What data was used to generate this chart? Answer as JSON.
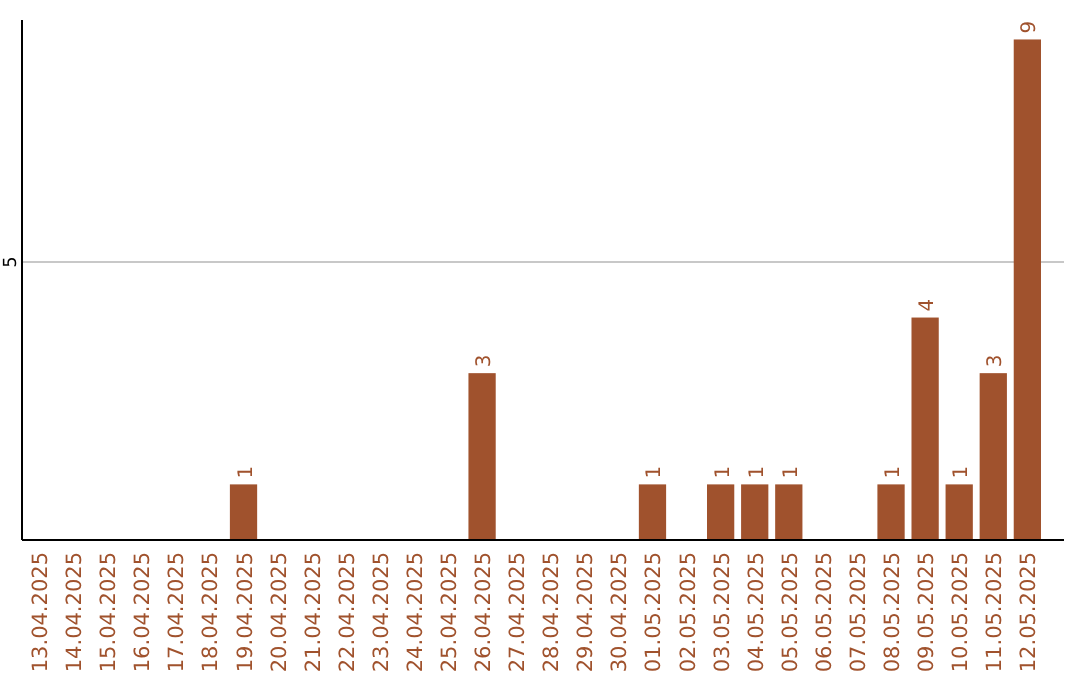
{
  "chart_data": {
    "type": "bar",
    "categories": [
      "13.04.2025",
      "14.04.2025",
      "15.04.2025",
      "16.04.2025",
      "17.04.2025",
      "18.04.2025",
      "19.04.2025",
      "20.04.2025",
      "21.04.2025",
      "22.04.2025",
      "23.04.2025",
      "24.04.2025",
      "25.04.2025",
      "26.04.2025",
      "27.04.2025",
      "28.04.2025",
      "29.04.2025",
      "30.04.2025",
      "01.05.2025",
      "02.05.2025",
      "03.05.2025",
      "04.05.2025",
      "05.05.2025",
      "06.05.2025",
      "07.05.2025",
      "08.05.2025",
      "09.05.2025",
      "10.05.2025",
      "11.05.2025",
      "12.05.2025"
    ],
    "values": [
      0,
      0,
      0,
      0,
      0,
      0,
      1,
      0,
      0,
      0,
      0,
      0,
      0,
      3,
      0,
      0,
      0,
      0,
      1,
      0,
      1,
      1,
      1,
      0,
      0,
      1,
      4,
      1,
      3,
      9
    ],
    "value_labels": [
      null,
      null,
      null,
      null,
      null,
      null,
      "1",
      null,
      null,
      null,
      null,
      null,
      null,
      "3",
      null,
      null,
      null,
      null,
      "1",
      null,
      "1",
      "1",
      "1",
      null,
      null,
      "1",
      "4",
      "1",
      "3",
      "9"
    ],
    "color": "#a0522d",
    "ylim": [
      0,
      9.35
    ],
    "yticks": [
      5
    ],
    "grid": "y"
  }
}
